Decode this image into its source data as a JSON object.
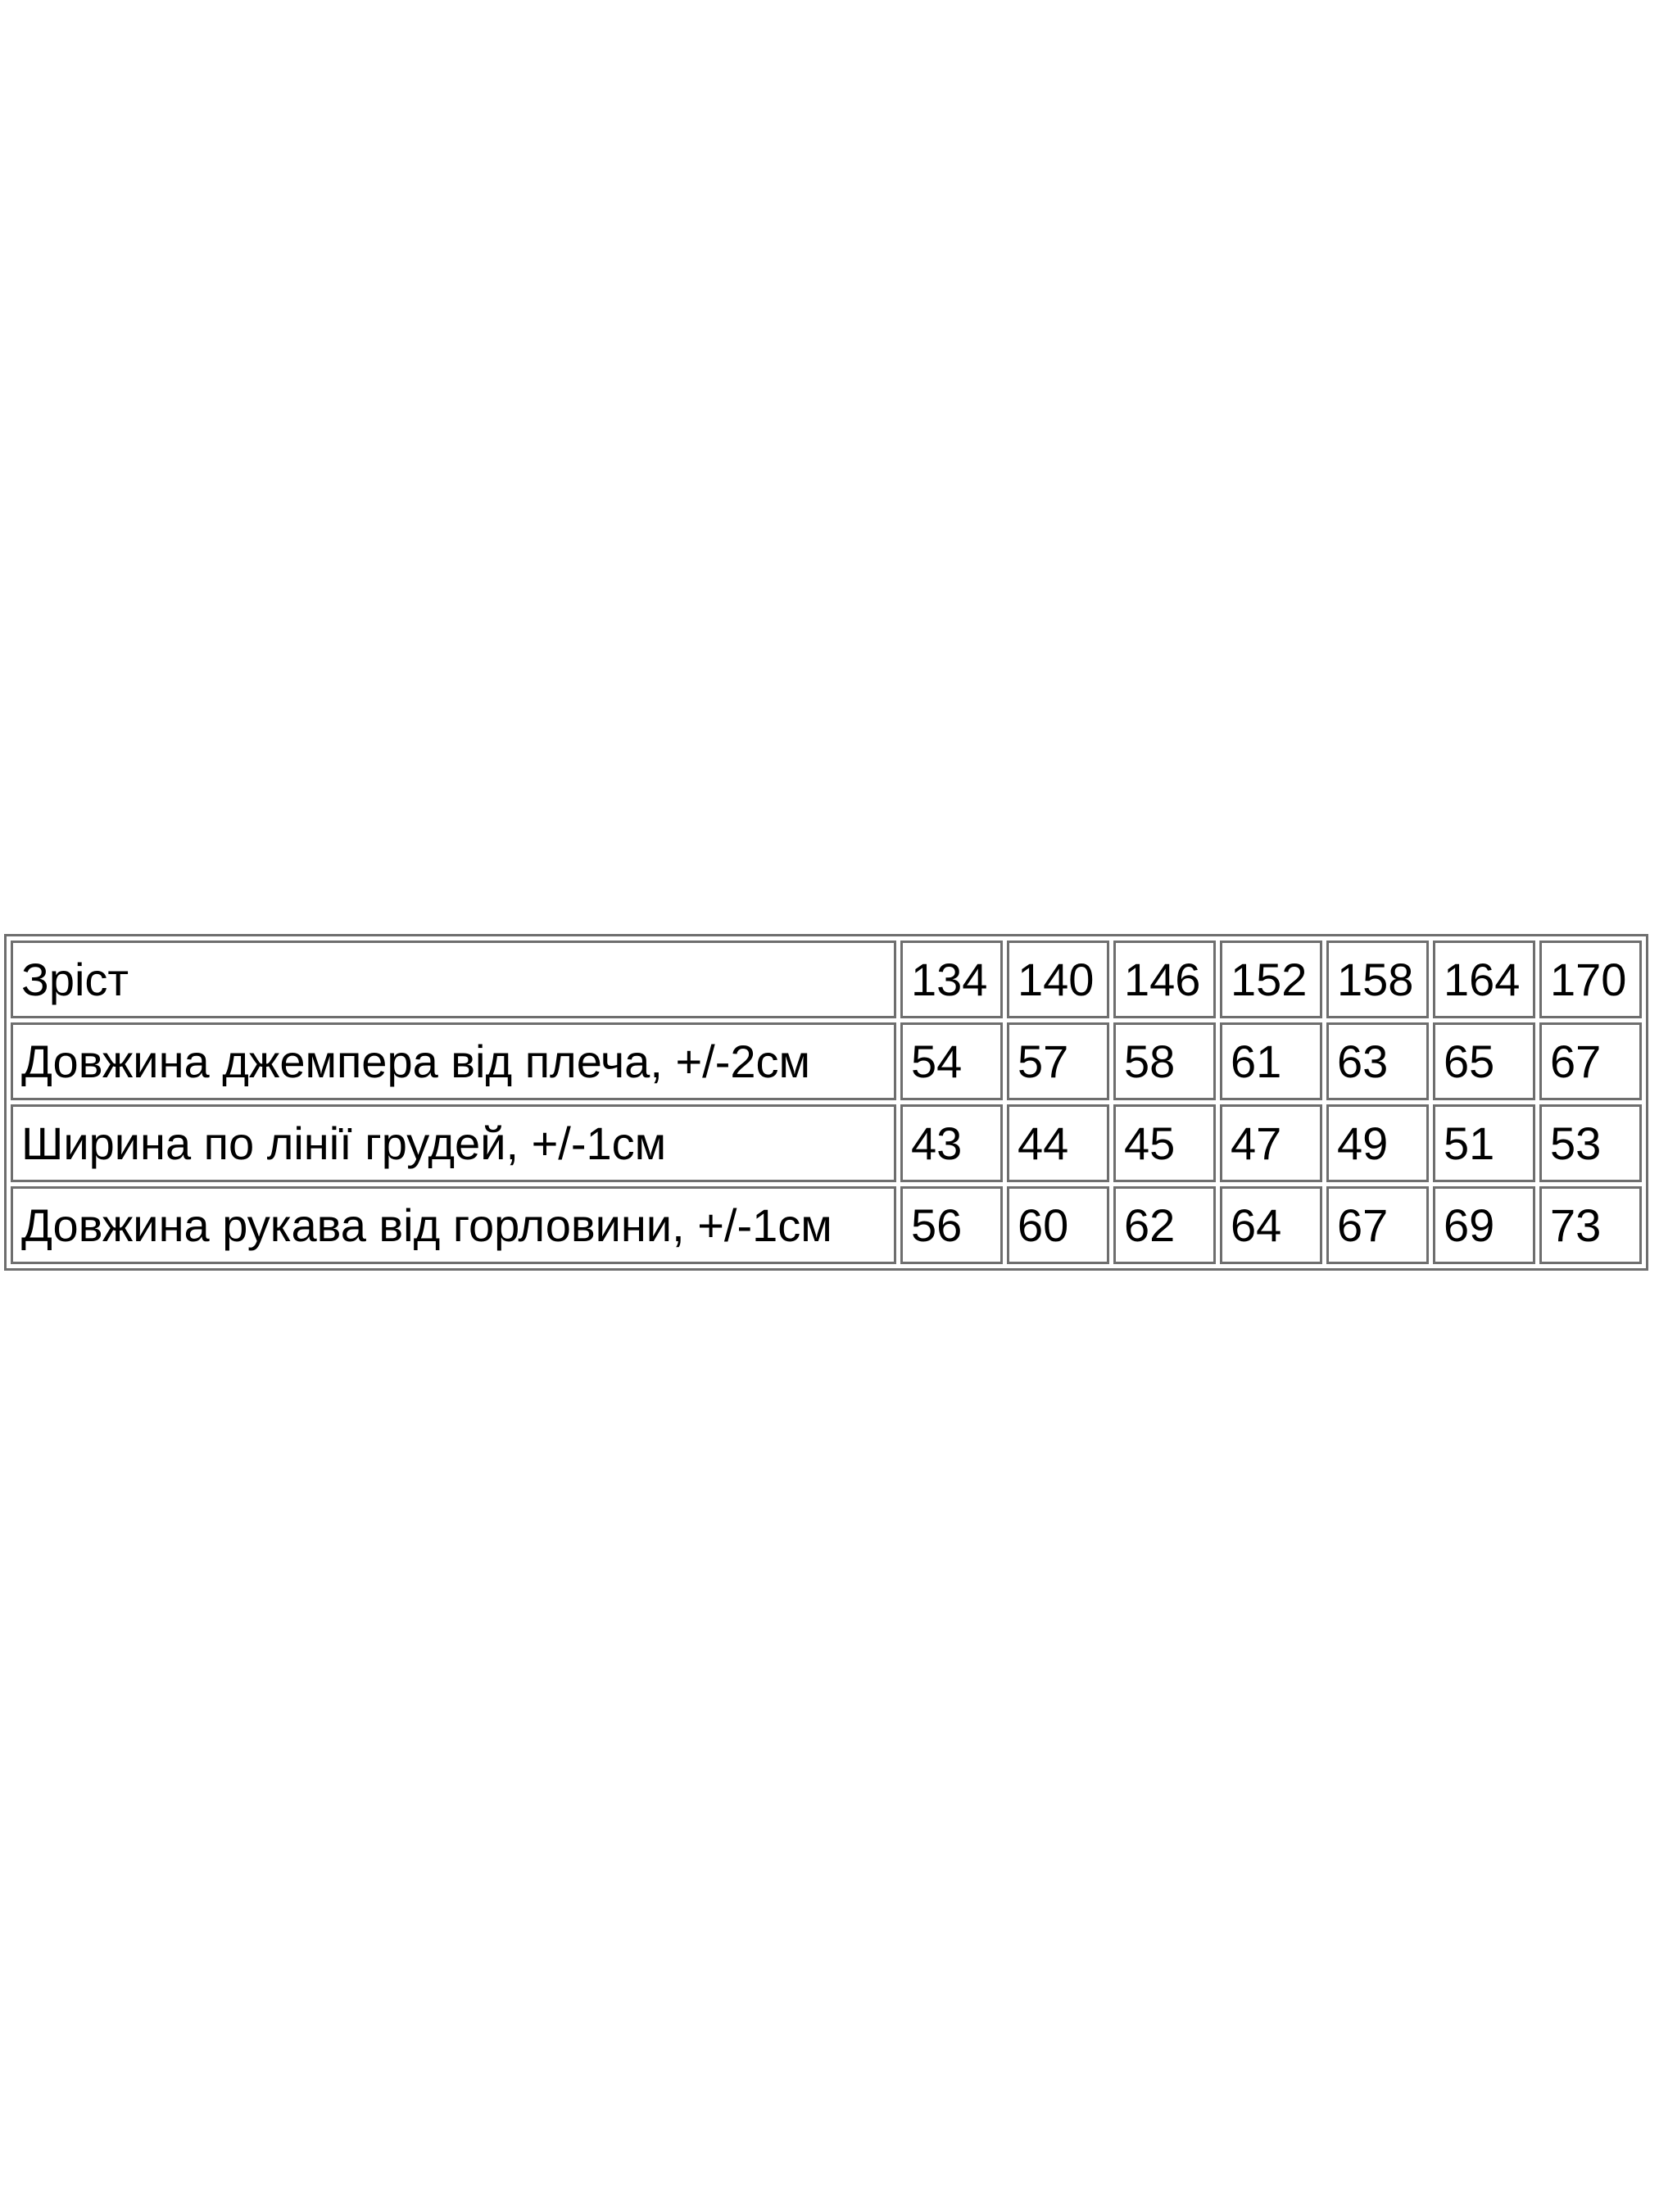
{
  "page": {
    "background_color": "#ffffff",
    "table_border_color": "#6e6e6e",
    "text_color": "#000000"
  },
  "table": {
    "header_row": {
      "label": "Зріст",
      "values": [
        "134",
        "140",
        "146",
        "152",
        "158",
        "164",
        "170"
      ]
    },
    "rows": [
      {
        "label": "Довжина джемпера від плеча, +/-2см",
        "values": [
          "54",
          "57",
          "58",
          "61",
          "63",
          "65",
          "67"
        ]
      },
      {
        "label": "Ширина по лінії грудей, +/-1см",
        "values": [
          "43",
          "44",
          "45",
          "47",
          "49",
          "51",
          "53"
        ]
      },
      {
        "label": "Довжина рукава від горловини, +/-1см",
        "values": [
          "56",
          "60",
          "62",
          "64",
          "67",
          "69",
          "73"
        ]
      }
    ]
  }
}
